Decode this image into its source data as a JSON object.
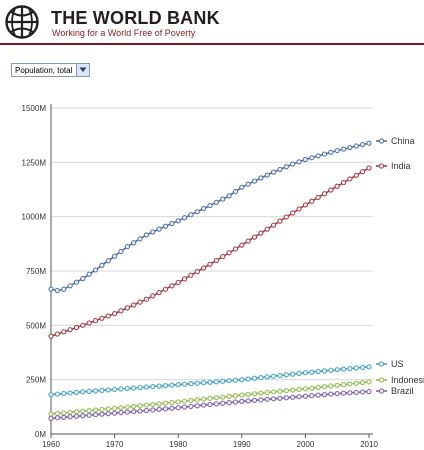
{
  "brand": {
    "title": "THE WORLD BANK",
    "tagline": "Working for a World Free of Poverty"
  },
  "indicator": {
    "selected": "Population, total",
    "icon": "chevron-down-icon"
  },
  "colors": {
    "brand_red": "#7a1422",
    "grid": "#d9d9d9",
    "axis": "#555555"
  },
  "chart_data": {
    "type": "line",
    "title": "",
    "xlabel": "",
    "ylabel": "",
    "grid": "horizontal",
    "legend": "right, at series end",
    "x_ticks": [
      1960,
      1970,
      1980,
      1990,
      2000,
      2010
    ],
    "y_ticks": [
      0,
      250,
      500,
      750,
      1000,
      1250,
      1500
    ],
    "y_tick_labels": [
      "0M",
      "250M",
      "500M",
      "750M",
      "1000M",
      "1250M",
      "1500M"
    ],
    "xlim": [
      1960,
      2010
    ],
    "ylim": [
      0,
      1500
    ],
    "y_unit": "millions",
    "series": [
      {
        "name": "China",
        "color": "#4f6fa0",
        "points": [
          [
            1960,
            667
          ],
          [
            1961,
            660
          ],
          [
            1962,
            666
          ],
          [
            1963,
            682
          ],
          [
            1965,
            715
          ],
          [
            1967,
            755
          ],
          [
            1970,
            818
          ],
          [
            1972,
            862
          ],
          [
            1975,
            916
          ],
          [
            1978,
            956
          ],
          [
            1980,
            981
          ],
          [
            1983,
            1023
          ],
          [
            1985,
            1051
          ],
          [
            1988,
            1096
          ],
          [
            1990,
            1135
          ],
          [
            1993,
            1178
          ],
          [
            1995,
            1205
          ],
          [
            1998,
            1242
          ],
          [
            2000,
            1263
          ],
          [
            2003,
            1288
          ],
          [
            2005,
            1304
          ],
          [
            2008,
            1325
          ],
          [
            2010,
            1338
          ]
        ]
      },
      {
        "name": "India",
        "color": "#a23c42",
        "points": [
          [
            1960,
            450
          ],
          [
            1965,
            500
          ],
          [
            1970,
            554
          ],
          [
            1975,
            620
          ],
          [
            1980,
            697
          ],
          [
            1985,
            781
          ],
          [
            1990,
            869
          ],
          [
            1995,
            961
          ],
          [
            2000,
            1054
          ],
          [
            2005,
            1140
          ],
          [
            2010,
            1224
          ]
        ]
      },
      {
        "name": "US",
        "color": "#45a3c2",
        "points": [
          [
            1960,
            181
          ],
          [
            1965,
            194
          ],
          [
            1970,
            205
          ],
          [
            1975,
            216
          ],
          [
            1980,
            227
          ],
          [
            1985,
            238
          ],
          [
            1990,
            250
          ],
          [
            1995,
            266
          ],
          [
            2000,
            282
          ],
          [
            2005,
            296
          ],
          [
            2010,
            309
          ]
        ]
      },
      {
        "name": "Indonesia",
        "color": "#9bbb4a",
        "points": [
          [
            1960,
            92
          ],
          [
            1965,
            105
          ],
          [
            1970,
            118
          ],
          [
            1975,
            133
          ],
          [
            1980,
            148
          ],
          [
            1985,
            164
          ],
          [
            1990,
            179
          ],
          [
            1995,
            194
          ],
          [
            2000,
            208
          ],
          [
            2005,
            224
          ],
          [
            2010,
            240
          ]
        ]
      },
      {
        "name": "Brazil",
        "color": "#7d60a8",
        "points": [
          [
            1960,
            72
          ],
          [
            1965,
            84
          ],
          [
            1970,
            96
          ],
          [
            1975,
            108
          ],
          [
            1980,
            121
          ],
          [
            1985,
            136
          ],
          [
            1990,
            150
          ],
          [
            1995,
            162
          ],
          [
            2000,
            174
          ],
          [
            2005,
            186
          ],
          [
            2010,
            195
          ]
        ]
      }
    ]
  }
}
